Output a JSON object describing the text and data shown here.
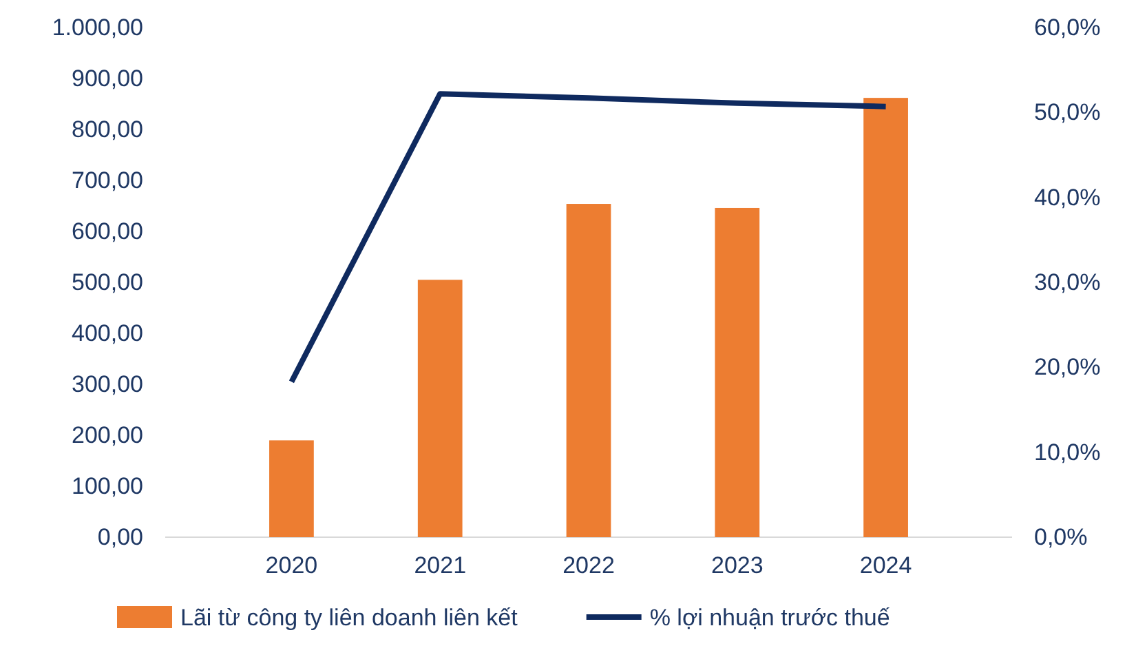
{
  "chart_data": {
    "type": "bar",
    "categories": [
      "2020",
      "2021",
      "2022",
      "2023",
      "2024"
    ],
    "series": [
      {
        "name": "Lãi từ công ty liên doanh liên kết",
        "color": "#ed7d31",
        "values": [
          190,
          505,
          654,
          646,
          862
        ]
      },
      {
        "name": "% lợi nhuận trước thuế",
        "type": "line",
        "axis": "y2",
        "color": "#0f2a5f",
        "values": [
          18.3,
          52.2,
          51.7,
          51.1,
          50.7
        ]
      }
    ],
    "ylim": [
      0,
      1000
    ],
    "yticks": [
      {
        "value": 0,
        "label": "0,00"
      },
      {
        "value": 100,
        "label": "100,00"
      },
      {
        "value": 200,
        "label": "200,00"
      },
      {
        "value": 300,
        "label": "300,00"
      },
      {
        "value": 400,
        "label": "400,00"
      },
      {
        "value": 500,
        "label": "500,00"
      },
      {
        "value": 600,
        "label": "600,00"
      },
      {
        "value": 700,
        "label": "700,00"
      },
      {
        "value": 800,
        "label": "800,00"
      },
      {
        "value": 900,
        "label": "900,00"
      },
      {
        "value": 1000,
        "label": "1.000,00"
      }
    ],
    "y2lim": [
      0,
      60
    ],
    "y2ticks": [
      {
        "value": 0,
        "label": "0,0%"
      },
      {
        "value": 10,
        "label": "10,0%"
      },
      {
        "value": 20,
        "label": "20,0%"
      },
      {
        "value": 30,
        "label": "30,0%"
      },
      {
        "value": 40,
        "label": "40,0%"
      },
      {
        "value": 50,
        "label": "50,0%"
      },
      {
        "value": 60,
        "label": "60,0%"
      }
    ],
    "legend": "bottom",
    "marker": "none",
    "line_style": "solid"
  }
}
